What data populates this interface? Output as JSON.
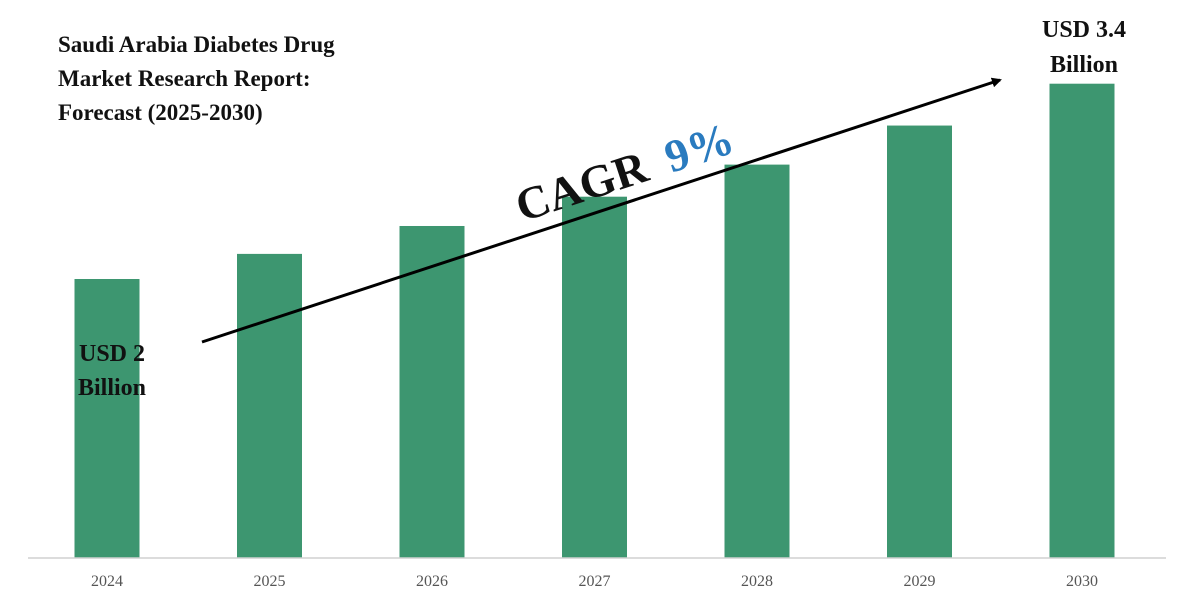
{
  "chart_data": {
    "type": "bar",
    "title_lines": [
      "Saudi Arabia Diabetes Drug",
      "Market Research Report:",
      "Forecast (2025-2030)"
    ],
    "categories": [
      "2024",
      "2025",
      "2026",
      "2027",
      "2028",
      "2029",
      "2030"
    ],
    "values": [
      2.0,
      2.18,
      2.38,
      2.59,
      2.82,
      3.1,
      3.4
    ],
    "unit": "USD Billion",
    "ylim": [
      0,
      4.0
    ],
    "grid": false,
    "annotations": {
      "start_line1": "USD 2",
      "start_line2": "Billion",
      "end_line1": "USD 3.4",
      "end_line2": "Billion",
      "cagr_label": "CAGR",
      "cagr_value": "9%"
    },
    "colors": {
      "bar": "#3d9670",
      "axis": "#d0d0d0",
      "text": "#111111",
      "tick": "#555555",
      "cagr_value": "#2a7bbf",
      "arrow": "#000000"
    }
  }
}
